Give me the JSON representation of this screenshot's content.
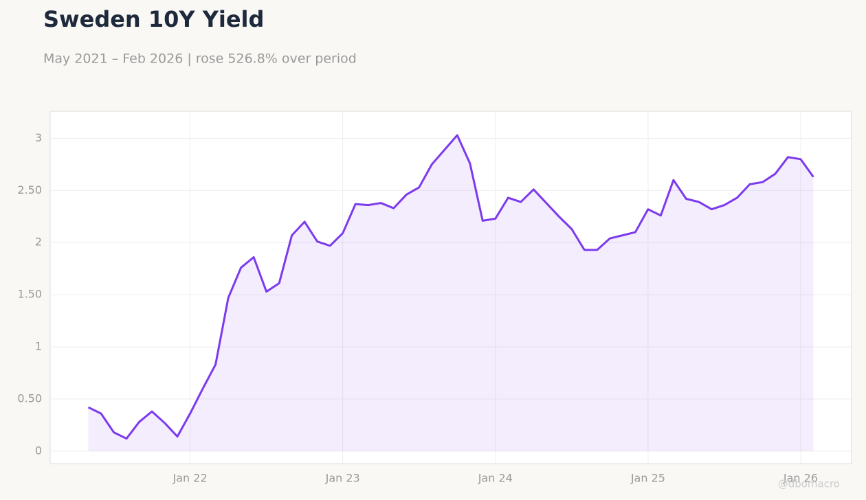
{
  "chart_data": {
    "type": "line",
    "title": "Sweden 10Y Yield",
    "subtitle": "May 2021 – Feb 2026 | rose 526.8% over period",
    "watermark": "@dbomacro",
    "x": [
      "2021-05",
      "2021-06",
      "2021-07",
      "2021-08",
      "2021-09",
      "2021-10",
      "2021-11",
      "2021-12",
      "2022-01",
      "2022-02",
      "2022-03",
      "2022-04",
      "2022-05",
      "2022-06",
      "2022-07",
      "2022-08",
      "2022-09",
      "2022-10",
      "2022-11",
      "2022-12",
      "2023-01",
      "2023-02",
      "2023-03",
      "2023-04",
      "2023-05",
      "2023-06",
      "2023-07",
      "2023-08",
      "2023-09",
      "2023-10",
      "2023-11",
      "2023-12",
      "2024-01",
      "2024-02",
      "2024-03",
      "2024-04",
      "2024-05",
      "2024-06",
      "2024-07",
      "2024-08",
      "2024-09",
      "2024-10",
      "2024-11",
      "2024-12",
      "2025-01",
      "2025-02",
      "2025-03",
      "2025-04",
      "2025-05",
      "2025-06",
      "2025-07",
      "2025-08",
      "2025-09",
      "2025-10",
      "2025-11",
      "2025-12",
      "2026-01",
      "2026-02"
    ],
    "series": [
      {
        "name": "Sweden 10Y Yield",
        "color": "#7c3aed",
        "values": [
          0.42,
          0.36,
          0.18,
          0.12,
          0.28,
          0.38,
          0.27,
          0.14,
          0.36,
          0.6,
          0.83,
          1.47,
          1.76,
          1.86,
          1.53,
          1.61,
          2.07,
          2.2,
          2.01,
          1.97,
          2.09,
          2.37,
          2.36,
          2.38,
          2.33,
          2.46,
          2.53,
          2.75,
          2.89,
          3.03,
          2.76,
          2.21,
          2.23,
          2.43,
          2.39,
          2.51,
          2.38,
          2.25,
          2.13,
          1.93,
          1.93,
          2.04,
          2.07,
          2.1,
          2.32,
          2.26,
          2.6,
          2.42,
          2.39,
          2.32,
          2.36,
          2.43,
          2.56,
          2.58,
          2.66,
          2.82,
          2.8,
          2.63
        ]
      }
    ],
    "xlim": [
      "2021-02",
      "2026-05"
    ],
    "xticks": [
      {
        "value": "2022-01",
        "label": "Jan 22"
      },
      {
        "value": "2023-01",
        "label": "Jan 23"
      },
      {
        "value": "2024-01",
        "label": "Jan 24"
      },
      {
        "value": "2025-01",
        "label": "Jan 25"
      },
      {
        "value": "2026-01",
        "label": "Jan 26"
      }
    ],
    "ylim": [
      -0.12,
      3.26
    ],
    "yticks": [
      0,
      {
        "value": 0.5,
        "label": "0.50"
      },
      1,
      {
        "value": 1.5,
        "label": "1.50"
      },
      2,
      {
        "value": 2.5,
        "label": "2.50"
      },
      3
    ],
    "grid": true
  }
}
